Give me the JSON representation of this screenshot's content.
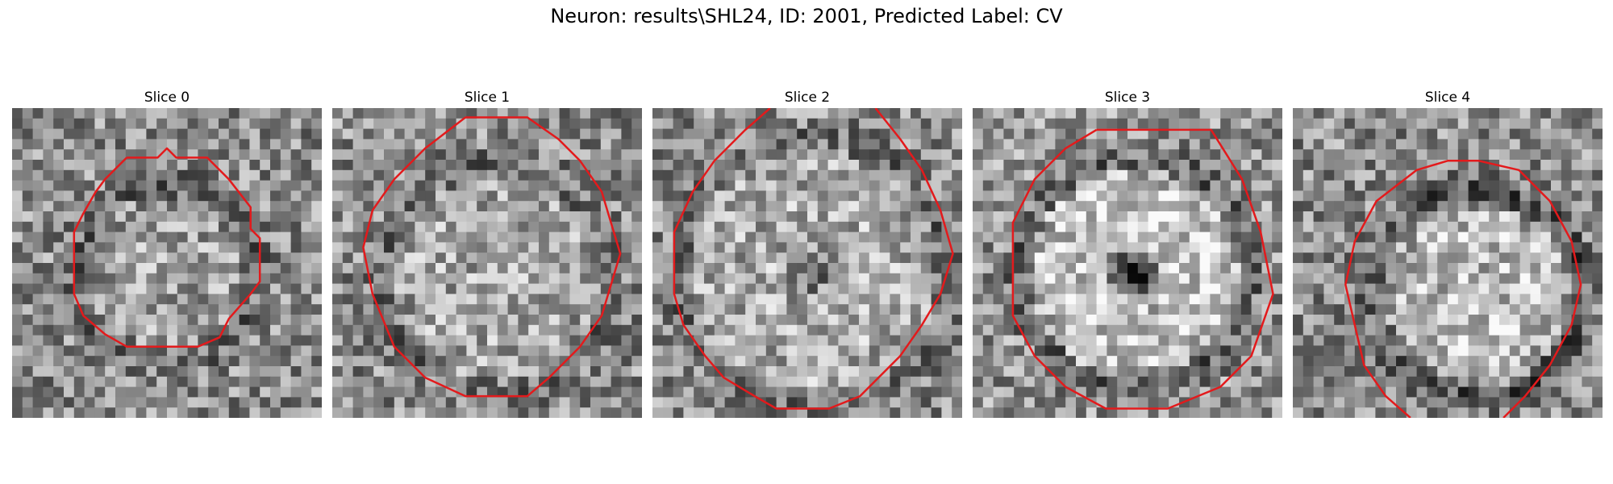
{
  "figure": {
    "title": "Neuron: results\\SHL24, ID: 2001, Predicted Label: CV"
  },
  "panels": [
    {
      "title": "Slice 0",
      "image": "grayscale-noise-microscopy-slice",
      "contour_color": "#e31a1c"
    },
    {
      "title": "Slice 1",
      "image": "grayscale-noise-microscopy-slice",
      "contour_color": "#e31a1c"
    },
    {
      "title": "Slice 2",
      "image": "grayscale-noise-microscopy-slice",
      "contour_color": "#e31a1c"
    },
    {
      "title": "Slice 3",
      "image": "grayscale-noise-microscopy-slice",
      "contour_color": "#e31a1c"
    },
    {
      "title": "Slice 4",
      "image": "grayscale-noise-microscopy-slice",
      "contour_color": "#e31a1c"
    }
  ]
}
